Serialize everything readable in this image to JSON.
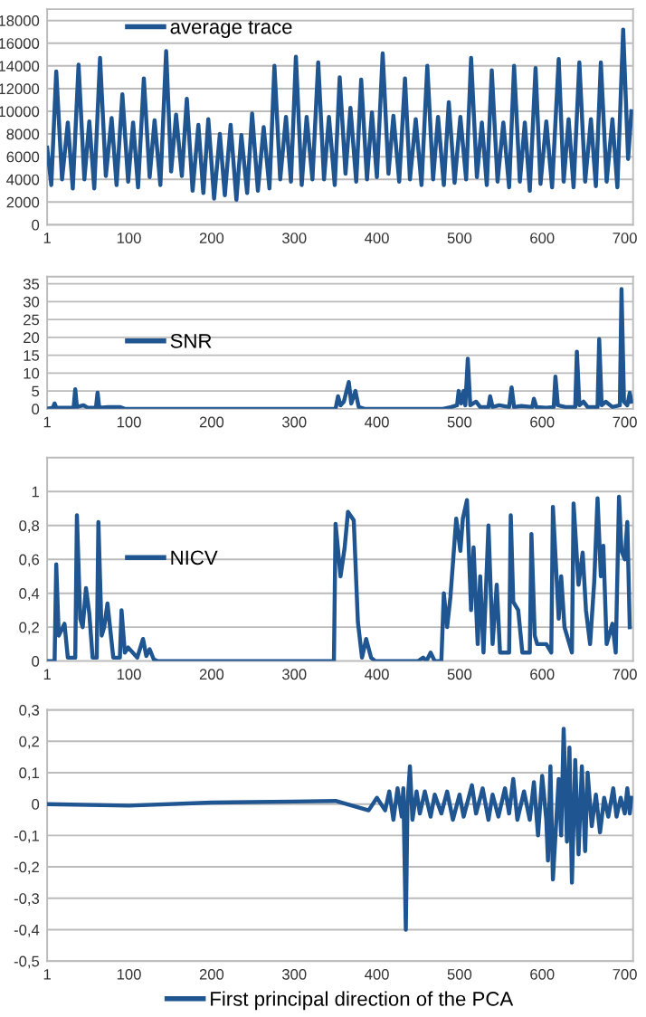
{
  "chart_data": [
    {
      "type": "line",
      "legend": "top left",
      "grid": "y",
      "xlim": [
        1,
        710
      ],
      "xticks": [
        1,
        100,
        200,
        300,
        400,
        500,
        600,
        700
      ],
      "ylim": [
        0,
        19000
      ],
      "yticks": [
        0,
        2000,
        4000,
        6000,
        8000,
        10000,
        12000,
        14000,
        16000,
        18000
      ],
      "series": [
        {
          "name": "average trace",
          "color": "#1f5590",
          "x": [
            1,
            6,
            12,
            19,
            26,
            32,
            39,
            46,
            52,
            58,
            65,
            72,
            79,
            85,
            92,
            99,
            105,
            111,
            118,
            125,
            131,
            138,
            145,
            151,
            157,
            164,
            170,
            177,
            184,
            190,
            196,
            203,
            210,
            216,
            223,
            230,
            236,
            243,
            249,
            256,
            263,
            270,
            276,
            283,
            290,
            296,
            302,
            309,
            315,
            322,
            329,
            336,
            342,
            349,
            355,
            362,
            368,
            375,
            381,
            388,
            394,
            400,
            407,
            414,
            420,
            427,
            434,
            440,
            447,
            454,
            461,
            468,
            474,
            481,
            487,
            494,
            501,
            508,
            514,
            521,
            527,
            533,
            539,
            546,
            553,
            560,
            566,
            573,
            579,
            585,
            592,
            598,
            605,
            612,
            620,
            626,
            632,
            638,
            645,
            652,
            659,
            665,
            671,
            678,
            685,
            691,
            698,
            704,
            708
          ],
          "values": [
            6800,
            3500,
            13500,
            4000,
            9000,
            3200,
            14100,
            4000,
            9100,
            3200,
            14700,
            4300,
            9400,
            3500,
            11500,
            3800,
            9000,
            3300,
            12900,
            4200,
            9200,
            3500,
            15300,
            4700,
            9700,
            4300,
            11100,
            3000,
            8800,
            2800,
            9300,
            2300,
            8000,
            2600,
            8800,
            2200,
            7900,
            2800,
            9800,
            3000,
            8600,
            3200,
            14000,
            4000,
            9500,
            3800,
            14800,
            3500,
            9500,
            4000,
            14300,
            4000,
            9500,
            3500,
            13000,
            4500,
            10300,
            3800,
            12800,
            4000,
            9900,
            4200,
            15100,
            4500,
            9600,
            3800,
            12900,
            4000,
            9300,
            3500,
            14000,
            4000,
            9500,
            3500,
            10800,
            3700,
            9500,
            4000,
            14700,
            4200,
            9000,
            3500,
            13600,
            3800,
            9000,
            3300,
            14000,
            3800,
            9000,
            3000,
            13800,
            3600,
            9100,
            3300,
            14600,
            3800,
            9300,
            3300,
            14300,
            3800,
            9300,
            3400,
            14300,
            3800,
            9300,
            3300,
            17200,
            5800,
            10000
          ]
        }
      ]
    },
    {
      "type": "line",
      "legend": "center left",
      "grid": "y",
      "xlim": [
        1,
        710
      ],
      "xticks": [
        1,
        100,
        200,
        300,
        400,
        500,
        600,
        700
      ],
      "ylim": [
        0,
        37
      ],
      "yticks": [
        0,
        5,
        10,
        15,
        20,
        25,
        30,
        35
      ],
      "series": [
        {
          "name": "SNR",
          "color": "#1f5590",
          "x": [
            1,
            8,
            10,
            12,
            33,
            35,
            37,
            45,
            50,
            60,
            62,
            64,
            75,
            89,
            95,
            350,
            353,
            356,
            360,
            366,
            369,
            374,
            378,
            385,
            480,
            490,
            497,
            499,
            502,
            505,
            507,
            510,
            513,
            520,
            525,
            535,
            537,
            540,
            548,
            560,
            563,
            566,
            575,
            588,
            590,
            593,
            605,
            614,
            616,
            619,
            628,
            640,
            642,
            645,
            650,
            655,
            667,
            669,
            672,
            677,
            685,
            694,
            696,
            699,
            703,
            706,
            708
          ],
          "values": [
            0,
            0.3,
            1.5,
            0.3,
            0.3,
            5.5,
            0.5,
            1,
            0.3,
            0.3,
            4.5,
            0.3,
            0.5,
            0.5,
            0,
            0,
            3.5,
            1,
            2,
            7.5,
            1.5,
            5,
            0.5,
            0,
            0,
            0.5,
            1,
            5,
            1.5,
            5,
            1,
            14,
            1,
            2,
            0.5,
            0.5,
            3.5,
            0.5,
            1,
            0.5,
            6,
            0.5,
            0.8,
            0.5,
            2.8,
            0.5,
            0.3,
            0.5,
            9,
            1,
            0.5,
            0.5,
            16,
            1,
            2,
            0.5,
            0.5,
            19.5,
            1,
            2,
            0.5,
            1,
            33.5,
            2,
            1,
            4.5,
            2
          ]
        }
      ]
    },
    {
      "type": "line",
      "legend": "center left",
      "grid": "y",
      "xlim": [
        1,
        710
      ],
      "xticks": [
        1,
        100,
        200,
        300,
        400,
        500,
        600,
        700
      ],
      "ylim": [
        0,
        1.2
      ],
      "yticks": [
        0,
        {
          "value": 0.2,
          "label": "0,2"
        },
        {
          "value": 0.4,
          "label": "0,4"
        },
        {
          "value": 0.6,
          "label": "0,6"
        },
        {
          "value": 0.8,
          "label": "0,8"
        },
        1
      ],
      "series": [
        {
          "name": "NICV",
          "color": "#1f5590",
          "x": [
            1,
            10,
            12,
            15,
            20,
            22,
            26,
            35,
            37,
            41,
            44,
            48,
            52,
            56,
            61,
            63,
            67,
            70,
            74,
            81,
            89,
            91,
            95,
            99,
            110,
            117,
            121,
            125,
            130,
            134,
            140,
            348,
            350,
            356,
            361,
            365,
            372,
            377,
            382,
            387,
            393,
            398,
            450,
            456,
            460,
            465,
            470,
            478,
            481,
            485,
            489,
            496,
            501,
            504,
            509,
            514,
            517,
            522,
            525,
            529,
            535,
            540,
            545,
            549,
            560,
            562,
            565,
            571,
            576,
            585,
            587,
            591,
            594,
            605,
            611,
            613,
            620,
            623,
            627,
            636,
            638,
            644,
            649,
            653,
            658,
            663,
            667,
            671,
            674,
            678,
            685,
            689,
            693,
            696,
            700,
            703,
            706
          ],
          "values": [
            0,
            0,
            0.57,
            0.15,
            0.2,
            0.22,
            0.02,
            0.02,
            0.86,
            0.25,
            0.2,
            0.43,
            0.28,
            0.02,
            0.02,
            0.82,
            0.15,
            0.2,
            0.34,
            0.02,
            0.02,
            0.3,
            0.05,
            0.08,
            0.02,
            0.13,
            0.03,
            0.07,
            0.01,
            0,
            0,
            0,
            0.81,
            0.5,
            0.67,
            0.88,
            0.83,
            0.23,
            0.02,
            0.13,
            0.02,
            0,
            0,
            0.02,
            0,
            0.05,
            0,
            0,
            0.4,
            0.2,
            0.38,
            0.84,
            0.65,
            0.84,
            0.95,
            0.3,
            0.67,
            0.1,
            0.5,
            0.05,
            0.8,
            0.1,
            0.45,
            0.05,
            0.05,
            0.86,
            0.35,
            0.3,
            0.05,
            0.05,
            0.75,
            0.15,
            0.1,
            0.1,
            0.05,
            0.91,
            0.25,
            0.5,
            0.2,
            0.05,
            0.93,
            0.45,
            0.64,
            0.3,
            0.1,
            0.47,
            0.96,
            0.5,
            0.68,
            0.1,
            0.22,
            0.05,
            0.97,
            0.65,
            0.6,
            0.82,
            0.2
          ]
        }
      ]
    },
    {
      "type": "line",
      "legend": "bottom",
      "grid": "y",
      "xlim": [
        1,
        710
      ],
      "xticks": [
        1,
        100,
        200,
        300,
        400,
        500,
        600,
        700
      ],
      "ylim": [
        -0.5,
        0.3
      ],
      "yticks": [
        {
          "value": -0.5,
          "label": "-0,5"
        },
        {
          "value": -0.4,
          "label": "-0,4"
        },
        {
          "value": -0.3,
          "label": "-0,3"
        },
        {
          "value": -0.2,
          "label": "-0,2"
        },
        {
          "value": -0.1,
          "label": "-0,1"
        },
        0,
        {
          "value": 0.1,
          "label": "0,1"
        },
        {
          "value": 0.2,
          "label": "0,2"
        },
        {
          "value": 0.3,
          "label": "0,3"
        }
      ],
      "series": [
        {
          "name": "First principal direction of the PCA",
          "color": "#1f5590",
          "x": [
            1,
            100,
            200,
            300,
            350,
            390,
            400,
            410,
            415,
            420,
            425,
            430,
            432,
            435,
            437,
            440,
            443,
            448,
            452,
            458,
            465,
            470,
            478,
            485,
            492,
            500,
            505,
            515,
            520,
            528,
            535,
            540,
            547,
            555,
            560,
            565,
            570,
            578,
            585,
            590,
            595,
            600,
            605,
            607,
            610,
            613,
            620,
            623,
            626,
            630,
            633,
            636,
            640,
            644,
            648,
            652,
            655,
            660,
            665,
            670,
            675,
            680,
            686,
            690,
            695,
            700,
            703,
            706,
            708
          ],
          "values": [
            0,
            -0.005,
            0.005,
            0.008,
            0.01,
            -0.02,
            0.02,
            -0.02,
            0.04,
            -0.05,
            0.05,
            -0.04,
            0.05,
            -0.4,
            0,
            0.12,
            -0.05,
            0.04,
            -0.03,
            0.04,
            -0.04,
            0.03,
            -0.03,
            0.04,
            -0.05,
            0.03,
            -0.04,
            0.06,
            -0.03,
            0.05,
            -0.05,
            0.03,
            -0.04,
            0.05,
            -0.03,
            0.08,
            -0.05,
            0.04,
            -0.05,
            0.07,
            -0.1,
            0.09,
            -0.05,
            -0.18,
            0.12,
            -0.24,
            0.08,
            -0.1,
            0.24,
            -0.12,
            0.18,
            -0.25,
            0.14,
            -0.16,
            0.12,
            -0.15,
            0.1,
            -0.07,
            0.03,
            -0.09,
            0.02,
            -0.04,
            0.05,
            -0.04,
            0.02,
            -0.03,
            0.05,
            -0.03,
            0.02
          ]
        }
      ]
    }
  ]
}
